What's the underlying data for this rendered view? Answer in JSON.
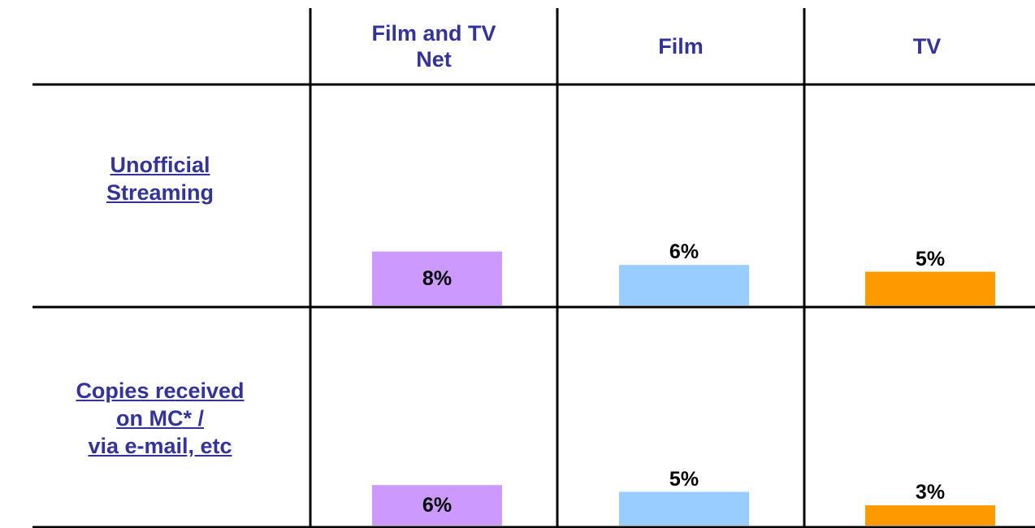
{
  "chart_data": {
    "type": "bar",
    "categories": [
      "Unofficial\nStreaming",
      "Copies received\non MC* /\n via e-mail, etc"
    ],
    "series": [
      {
        "name": "Film and TV\nNet",
        "color": "#cc99ff",
        "values": [
          8,
          6
        ],
        "value_labels": [
          "8%",
          "6%"
        ]
      },
      {
        "name": "Film",
        "color": "#99ccff",
        "values": [
          6,
          5
        ],
        "value_labels": [
          "6%",
          "5%"
        ]
      },
      {
        "name": "TV",
        "color": "#ff9900",
        "values": [
          5,
          3
        ],
        "value_labels": [
          "5%",
          "3%"
        ]
      }
    ]
  }
}
